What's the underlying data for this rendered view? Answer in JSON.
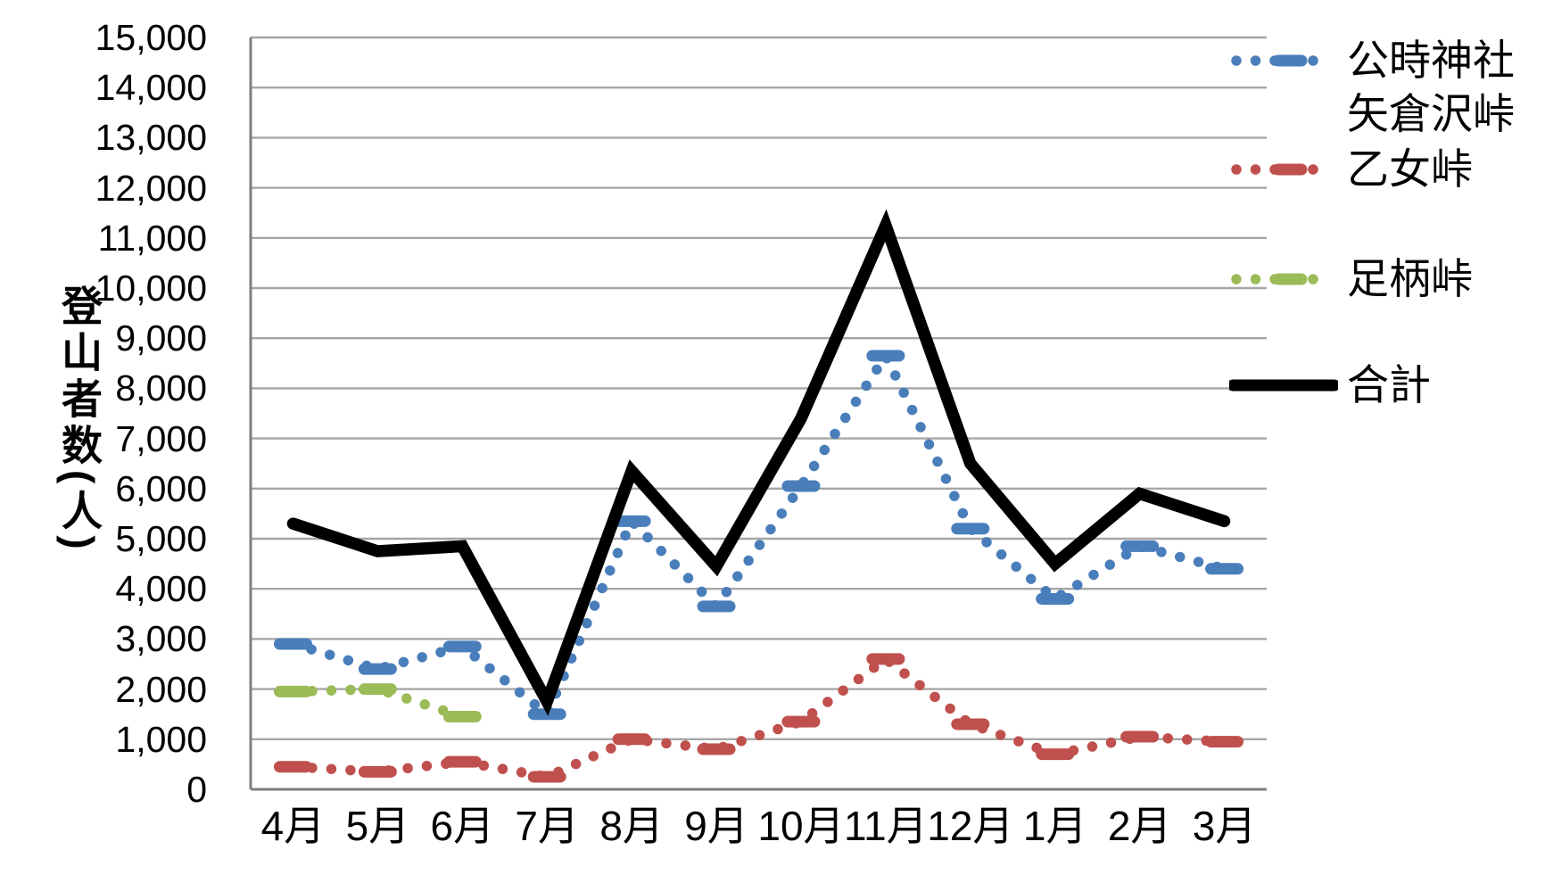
{
  "y_axis": {
    "title": "登山者数(人)",
    "tick_labels": [
      "15,000",
      "14,000",
      "13,000",
      "12,000",
      "11,000",
      "10,000",
      "9,000",
      "8,000",
      "7,000",
      "6,000",
      "5,000",
      "4,000",
      "3,000",
      "2,000",
      "1,000",
      "0"
    ]
  },
  "x_axis": {
    "labels": [
      "4月",
      "5月",
      "6月",
      "7月",
      "8月",
      "9月",
      "10月",
      "11月",
      "12月",
      "1月",
      "2月",
      "3月"
    ]
  },
  "legend": {
    "items": [
      {
        "id": "kintoki-yagurasawa",
        "lines": [
          "公時神社",
          "矢倉沢峠"
        ],
        "color": "#4A7EBB",
        "style": "dotted"
      },
      {
        "id": "otome",
        "lines": [
          "乙女峠"
        ],
        "color": "#C0504D",
        "style": "dotted"
      },
      {
        "id": "ashigara",
        "lines": [
          "足柄峠"
        ],
        "color": "#9BBB59",
        "style": "dotted"
      },
      {
        "id": "total",
        "lines": [
          "合計"
        ],
        "color": "#000000",
        "style": "solid"
      }
    ]
  },
  "colors": {
    "gridline": "#A6A6A6",
    "axis": "#7F7F7F",
    "background": "#FFFFFF",
    "blue": "#4A7EBB",
    "red": "#C0504D",
    "green": "#9BBB59",
    "black": "#000000"
  },
  "chart_data": {
    "type": "line",
    "title": "",
    "xlabel": "",
    "ylabel": "登山者数(人)",
    "ylim": [
      0,
      15000
    ],
    "ytick_step": 1000,
    "grid": true,
    "legend_position": "right",
    "categories": [
      "4月",
      "5月",
      "6月",
      "7月",
      "8月",
      "9月",
      "10月",
      "11月",
      "12月",
      "1月",
      "2月",
      "3月"
    ],
    "series": [
      {
        "id": "kintoki-yagurasawa",
        "name": "公時神社矢倉沢峠",
        "color": "#4A7EBB",
        "style": "dotted",
        "values": [
          2900,
          2400,
          2850,
          1500,
          5350,
          3650,
          6050,
          8650,
          5200,
          3800,
          4850,
          4400
        ]
      },
      {
        "id": "otome",
        "name": "乙女峠",
        "color": "#C0504D",
        "style": "dotted",
        "values": [
          450,
          350,
          550,
          250,
          1000,
          800,
          1350,
          2600,
          1300,
          700,
          1050,
          950
        ]
      },
      {
        "id": "ashigara",
        "name": "足柄峠",
        "color": "#9BBB59",
        "style": "dotted",
        "values": [
          1950,
          2000,
          1450,
          null,
          null,
          null,
          null,
          null,
          null,
          null,
          null,
          null
        ]
      },
      {
        "id": "total",
        "name": "合計",
        "color": "#000000",
        "style": "solid",
        "values": [
          5300,
          4750,
          4850,
          1750,
          6350,
          4450,
          7400,
          11250,
          6500,
          4500,
          5900,
          5350
        ]
      }
    ]
  }
}
